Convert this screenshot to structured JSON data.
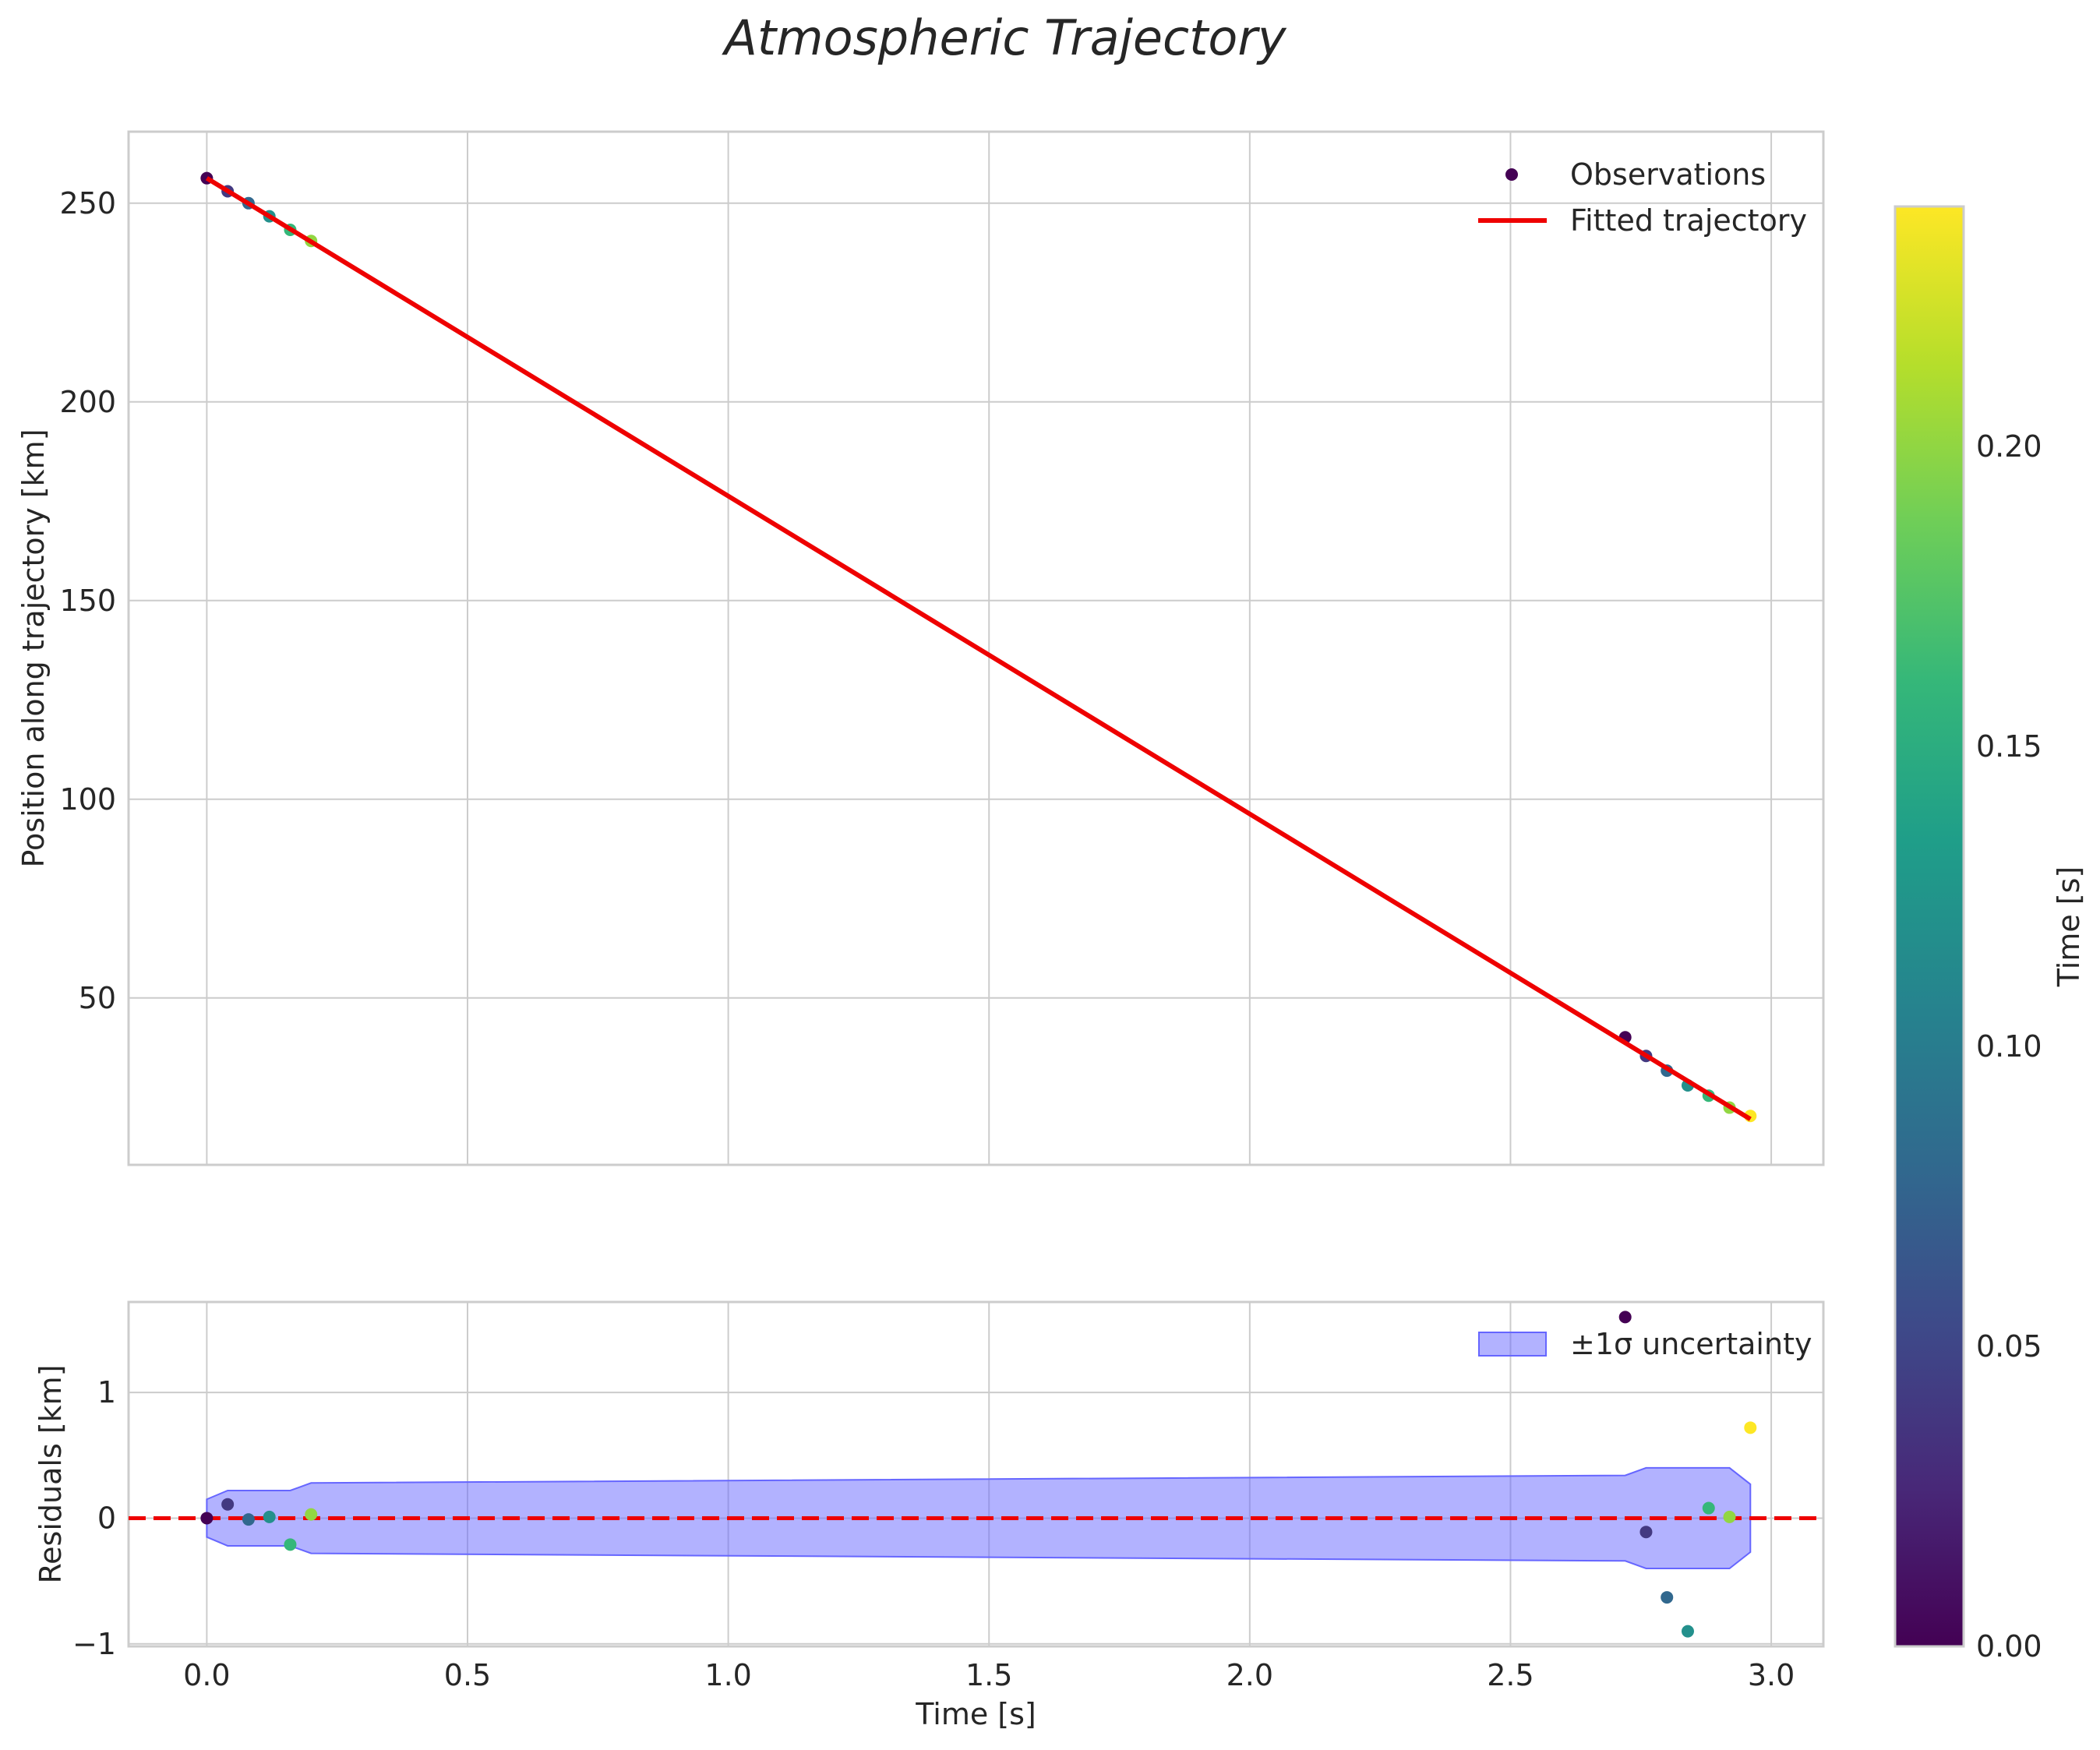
{
  "title": "Atmospheric Trajectory",
  "colors": {
    "fit_line": "#ee0000",
    "uncertainty_fill": "#6666ff",
    "grid": "#cccccc",
    "spine": "#cccccc",
    "zero_line": "#ee0000",
    "text": "#262626"
  },
  "chart_data": [
    {
      "name": "trajectory",
      "type": "scatter",
      "xlim": [
        -0.15,
        3.1
      ],
      "ylim": [
        8,
        268
      ],
      "xticks": [
        0.0,
        0.5,
        1.0,
        1.5,
        2.0,
        2.5,
        3.0
      ],
      "yticks": [
        50,
        100,
        150,
        200,
        250
      ],
      "ytick_labels": [
        "50",
        "100",
        "150",
        "200",
        "250"
      ],
      "xlabel": "",
      "ylabel": "Position along trajectory [km]",
      "grid": true,
      "legend": {
        "location": "top-right",
        "observations_label": "Observations",
        "fit_label": "Fitted trajectory"
      },
      "observations": {
        "name": "Observations",
        "x": [
          0.0,
          0.04,
          0.08,
          0.12,
          0.16,
          0.2,
          2.72,
          2.76,
          2.8,
          2.84,
          2.88,
          2.92,
          2.96
        ],
        "y": [
          256.3,
          253.0,
          250.0,
          246.7,
          243.3,
          240.5,
          40.1,
          35.4,
          31.7,
          28.0,
          25.4,
          22.4,
          20.3
        ],
        "c": [
          0.0,
          0.04,
          0.08,
          0.12,
          0.16,
          0.2,
          0.0,
          0.04,
          0.08,
          0.12,
          0.16,
          0.2,
          0.24
        ]
      },
      "fit": {
        "name": "Fitted trajectory",
        "x": [
          0.0,
          2.96
        ],
        "y": [
          256.3,
          19.5
        ]
      }
    },
    {
      "name": "residuals",
      "type": "scatter",
      "xlim": [
        -0.15,
        3.1
      ],
      "ylim": [
        -1.02,
        1.72
      ],
      "xticks": [
        0.0,
        0.5,
        1.0,
        1.5,
        2.0,
        2.5,
        3.0
      ],
      "xtick_labels": [
        "0.0",
        "0.5",
        "1.0",
        "1.5",
        "2.0",
        "2.5",
        "3.0"
      ],
      "yticks": [
        -1,
        0,
        1
      ],
      "ytick_labels": [
        "−1",
        "0",
        "1"
      ],
      "xlabel": "Time [s]",
      "ylabel": "Residuals [km]",
      "grid": true,
      "zero_line": 0,
      "legend": {
        "location": "top-right",
        "band_label": "±1σ uncertainty"
      },
      "residuals": {
        "x": [
          0.0,
          0.04,
          0.08,
          0.12,
          0.16,
          0.2,
          2.72,
          2.76,
          2.8,
          2.84,
          2.88,
          2.92,
          2.96
        ],
        "y": [
          0.0,
          0.11,
          -0.01,
          0.01,
          -0.21,
          0.03,
          1.6,
          -0.11,
          -0.63,
          -0.9,
          0.08,
          0.01,
          0.72
        ],
        "c": [
          0.0,
          0.04,
          0.08,
          0.12,
          0.16,
          0.2,
          0.0,
          0.04,
          0.08,
          0.12,
          0.16,
          0.2,
          0.24
        ]
      },
      "uncertainty_band": {
        "name": "±1σ uncertainty",
        "x": [
          0.0,
          0.04,
          0.16,
          0.2,
          2.72,
          2.76,
          2.92,
          2.96
        ],
        "upper": [
          0.15,
          0.22,
          0.22,
          0.28,
          0.34,
          0.4,
          0.4,
          0.27
        ],
        "lower": [
          -0.15,
          -0.22,
          -0.22,
          -0.28,
          -0.34,
          -0.4,
          -0.4,
          -0.27
        ]
      }
    }
  ],
  "colorbar": {
    "label": "Time [s]",
    "colormap": "viridis",
    "range": [
      0.0,
      0.24
    ],
    "ticks": [
      0.0,
      0.05,
      0.1,
      0.15,
      0.2
    ],
    "tick_labels": [
      "0.00",
      "0.05",
      "0.10",
      "0.15",
      "0.20"
    ]
  }
}
